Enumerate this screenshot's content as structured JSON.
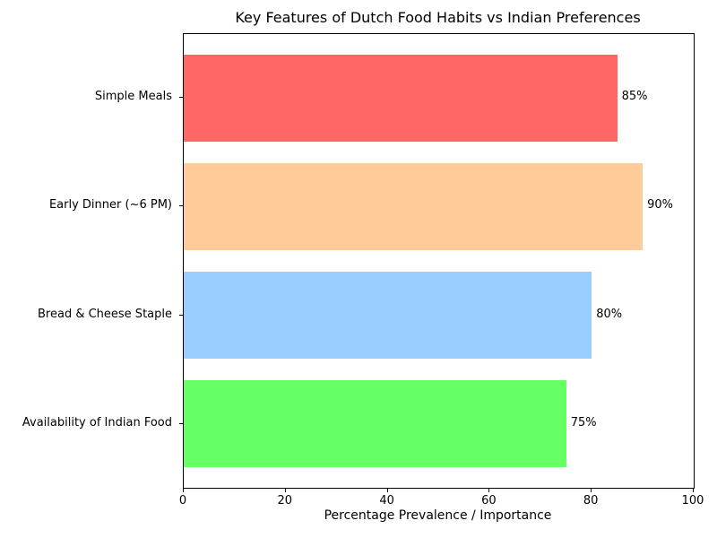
{
  "chart_data": {
    "type": "bar",
    "orientation": "horizontal",
    "title": "Key Features of Dutch Food Habits vs Indian Preferences",
    "xlabel": "Percentage Prevalence / Importance",
    "ylabel": "",
    "categories": [
      "Simple Meals",
      "Early Dinner (~6 PM)",
      "Bread & Cheese Staple",
      "Availability of Indian Food"
    ],
    "values": [
      85,
      90,
      80,
      75
    ],
    "value_labels": [
      "85%",
      "90%",
      "80%",
      "75%"
    ],
    "bar_colors": [
      "#ff6666",
      "#ffcc99",
      "#99ccff",
      "#66ff66"
    ],
    "xlim": [
      0,
      100
    ],
    "xticks": [
      "0",
      "20",
      "40",
      "60",
      "80",
      "100"
    ],
    "xtick_values": [
      0,
      20,
      40,
      60,
      80,
      100
    ],
    "grid": false,
    "legend": false,
    "text_color": "#000000",
    "spine_color": "#000000",
    "background_color": "#ffffff"
  }
}
